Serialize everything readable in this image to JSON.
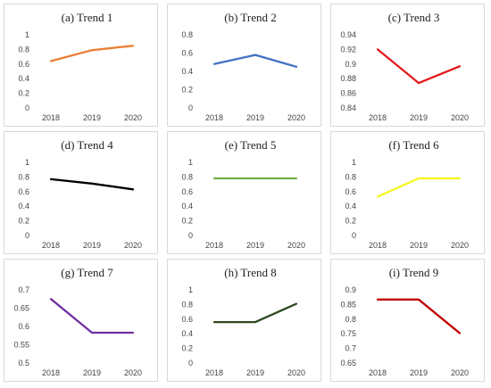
{
  "chart_data": [
    {
      "type": "line",
      "title": "(a) Trend 1",
      "categories": [
        "2018",
        "2019",
        "2020"
      ],
      "values": [
        0.64,
        0.79,
        0.85
      ],
      "ylim": [
        0,
        1
      ],
      "yticks": [
        "0",
        "0.2",
        "0.4",
        "0.6",
        "0.8",
        "1"
      ],
      "color": "#ED7D31"
    },
    {
      "type": "line",
      "title": "(b) Trend 2",
      "categories": [
        "2018",
        "2019",
        "2020"
      ],
      "values": [
        0.48,
        0.58,
        0.45
      ],
      "ylim": [
        0,
        0.8
      ],
      "yticks": [
        "0",
        "0.2",
        "0.4",
        "0.6",
        "0.8"
      ],
      "color": "#4472C4"
    },
    {
      "type": "line",
      "title": "(c) Trend 3",
      "categories": [
        "2018",
        "2019",
        "2020"
      ],
      "values": [
        0.92,
        0.874,
        0.897
      ],
      "ylim": [
        0.84,
        0.94
      ],
      "yticks": [
        "0.84",
        "0.86",
        "0.88",
        "0.9",
        "0.92",
        "0.94"
      ],
      "color": "#E31A1C"
    },
    {
      "type": "line",
      "title": "(d) Trend 4",
      "categories": [
        "2018",
        "2019",
        "2020"
      ],
      "values": [
        0.77,
        0.71,
        0.63
      ],
      "ylim": [
        0,
        1
      ],
      "yticks": [
        "0",
        "0.2",
        "0.4",
        "0.6",
        "0.8",
        "1"
      ],
      "color": "#000000"
    },
    {
      "type": "line",
      "title": "(e) Trend 5",
      "categories": [
        "2018",
        "2019",
        "2020"
      ],
      "values": [
        0.78,
        0.78,
        0.78
      ],
      "ylim": [
        0,
        1
      ],
      "yticks": [
        "0",
        "0.2",
        "0.4",
        "0.6",
        "0.8",
        "1"
      ],
      "color": "#70AD47"
    },
    {
      "type": "line",
      "title": "(f) Trend 6",
      "categories": [
        "2018",
        "2019",
        "2020"
      ],
      "values": [
        0.53,
        0.78,
        0.78
      ],
      "ylim": [
        0,
        1
      ],
      "yticks": [
        "0",
        "0.2",
        "0.4",
        "0.6",
        "0.8",
        "1"
      ],
      "color": "#F5F51E"
    },
    {
      "type": "line",
      "title": "(g) Trend 7",
      "categories": [
        "2018",
        "2019",
        "2020"
      ],
      "values": [
        0.675,
        0.583,
        0.583
      ],
      "ylim": [
        0.5,
        0.7
      ],
      "yticks": [
        "0.5",
        "0.55",
        "0.6",
        "0.65",
        "0.7"
      ],
      "color": "#7030A0"
    },
    {
      "type": "line",
      "title": "(h) Trend 8",
      "categories": [
        "2018",
        "2019",
        "2020"
      ],
      "values": [
        0.56,
        0.56,
        0.81
      ],
      "ylim": [
        0,
        1
      ],
      "yticks": [
        "0",
        "0.2",
        "0.4",
        "0.6",
        "0.8",
        "1"
      ],
      "color": "#2E4A1E"
    },
    {
      "type": "line",
      "title": "(i) Trend 9",
      "categories": [
        "2018",
        "2019",
        "2020"
      ],
      "values": [
        0.867,
        0.867,
        0.752
      ],
      "ylim": [
        0.65,
        0.9
      ],
      "yticks": [
        "0.65",
        "0.7",
        "0.75",
        "0.8",
        "0.85",
        "0.9"
      ],
      "color": "#C00000"
    }
  ]
}
